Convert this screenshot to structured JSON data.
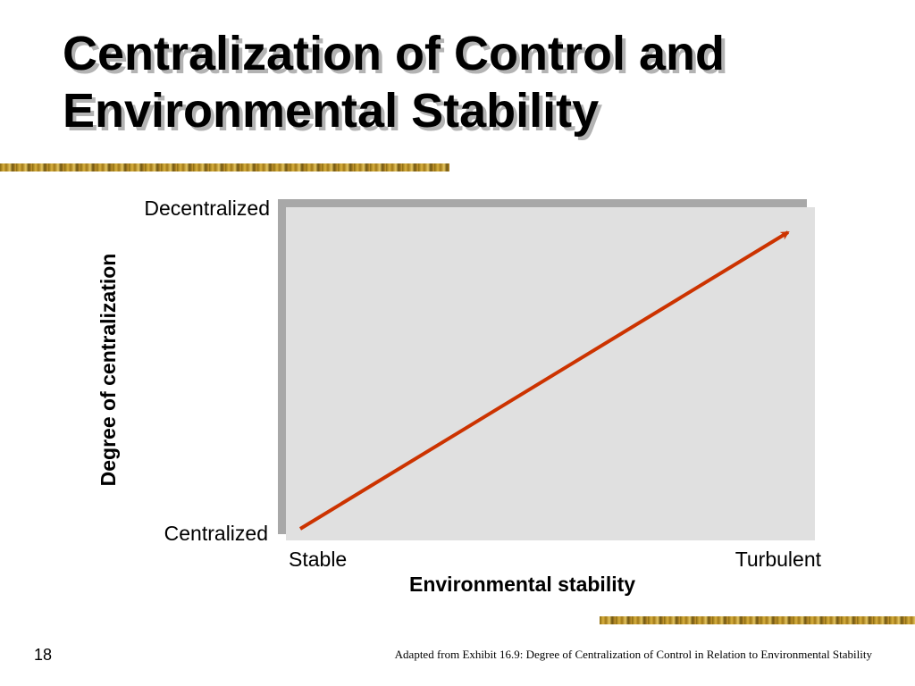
{
  "slide": {
    "title_line1": "Centralization of Control and",
    "title_line2": "Environmental Stability",
    "page_number": "18",
    "caption": "Adapted from Exhibit 16.9: Degree of Centralization of Control in Relation to Environmental Stability"
  },
  "diagram": {
    "y_axis_label": "Degree of centralization",
    "y_top_label": "Decentralized",
    "y_bottom_label": "Centralized",
    "x_axis_label": "Environmental stability",
    "x_left_label": "Stable",
    "x_right_label": "Turbulent",
    "arrow_direction": "from Stable/Centralized to Turbulent/Decentralized",
    "arrow_color": "#cc3300",
    "plot_background": "#e0e0e0",
    "accent_rule_color": "#c99a30"
  }
}
